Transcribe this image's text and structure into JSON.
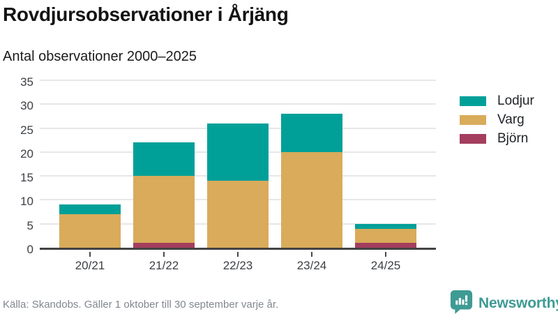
{
  "header": {
    "title": "Rovdjursobservationer i Årjäng",
    "subtitle": "Antal observationer 2000–2025"
  },
  "chart_data": {
    "type": "bar",
    "stacked": true,
    "title": "Rovdjursobservationer i Årjäng",
    "subtitle": "Antal observationer 2000–2025",
    "categories": [
      "20/21",
      "21/22",
      "22/23",
      "23/24",
      "24/25"
    ],
    "series": [
      {
        "name": "Lodjur",
        "color": "#00a099",
        "values": [
          2,
          7,
          12,
          8,
          1
        ]
      },
      {
        "name": "Varg",
        "color": "#d9ab5b",
        "values": [
          7,
          14,
          14,
          20,
          3
        ]
      },
      {
        "name": "Björn",
        "color": "#a43e5e",
        "values": [
          0,
          1,
          0,
          0,
          1
        ]
      }
    ],
    "stack_order_bottom_to_top": [
      "Björn",
      "Varg",
      "Lodjur"
    ],
    "totals": [
      9,
      22,
      26,
      28,
      5
    ],
    "xlabel": "",
    "ylabel": "",
    "yticks": [
      0,
      5,
      10,
      15,
      20,
      25,
      30,
      35
    ],
    "ylim": [
      0,
      35
    ],
    "grid": "horizontal",
    "legend_position": "right"
  },
  "colors": {
    "lodjur": "#00a099",
    "varg": "#d9ab5b",
    "bjorn": "#a43e5e",
    "axis": "#424242",
    "gridline": "#e7e7e7",
    "brand_teal": "#3e9b94"
  },
  "footer": {
    "source": "Källa: Skandobs. Gäller 1 oktober till 30 september varje år.",
    "brand": "Newsworthy"
  }
}
